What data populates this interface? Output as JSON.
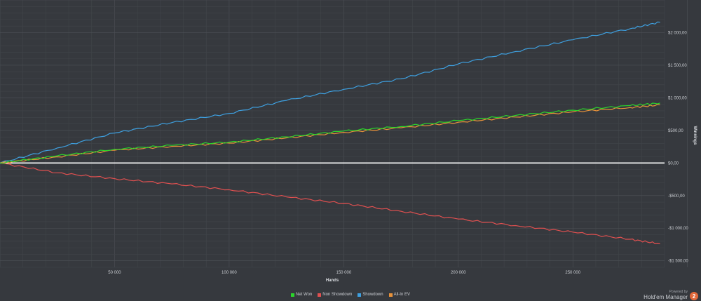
{
  "chart_data": {
    "type": "line",
    "xlabel": "Hands",
    "ylabel": "Winnings",
    "xlim": [
      0,
      290000
    ],
    "ylim": [
      -1600,
      2500
    ],
    "x_ticks": [
      50000,
      100000,
      150000,
      200000,
      250000
    ],
    "x_tick_labels": [
      "50 000",
      "100 000",
      "150 000",
      "200 000",
      "250 000"
    ],
    "y_ticks": [
      2000,
      1500,
      1000,
      500,
      0,
      -500,
      -1000,
      -1500
    ],
    "y_tick_labels": [
      "$2 000,00",
      "$1 500,00",
      "$1 000,00",
      "$500,00",
      "$0,00",
      "-$500,00",
      "-$1 000,00",
      "-$1 500,00"
    ],
    "grid": true,
    "legend_position": "bottom-center",
    "series": [
      {
        "name": "Net Won",
        "color": "#2bd62b",
        "x": [
          0,
          25000,
          50000,
          75000,
          100000,
          125000,
          150000,
          175000,
          200000,
          225000,
          250000,
          275000,
          288000
        ],
        "y": [
          0,
          110,
          210,
          270,
          320,
          400,
          490,
          560,
          650,
          730,
          810,
          880,
          920
        ]
      },
      {
        "name": "Non Showdown",
        "color": "#e05050",
        "x": [
          0,
          25000,
          50000,
          75000,
          100000,
          125000,
          150000,
          175000,
          200000,
          225000,
          250000,
          275000,
          288000
        ],
        "y": [
          0,
          -150,
          -240,
          -320,
          -410,
          -520,
          -620,
          -740,
          -860,
          -960,
          -1060,
          -1170,
          -1240
        ]
      },
      {
        "name": "Showdown",
        "color": "#3ea0e0",
        "x": [
          0,
          25000,
          50000,
          75000,
          100000,
          125000,
          150000,
          175000,
          200000,
          225000,
          250000,
          275000,
          288000
        ],
        "y": [
          0,
          230,
          460,
          620,
          760,
          960,
          1130,
          1290,
          1520,
          1710,
          1890,
          2060,
          2160
        ]
      },
      {
        "name": "All-In EV",
        "color": "#e8923a",
        "x": [
          0,
          25000,
          50000,
          75000,
          100000,
          125000,
          150000,
          175000,
          200000,
          225000,
          250000,
          275000,
          288000
        ],
        "y": [
          0,
          95,
          195,
          255,
          305,
          385,
          470,
          540,
          625,
          705,
          785,
          850,
          890
        ]
      }
    ]
  },
  "branding": {
    "powered_by": "Powered by",
    "name": "Hold'em Manager",
    "badge": "2"
  }
}
